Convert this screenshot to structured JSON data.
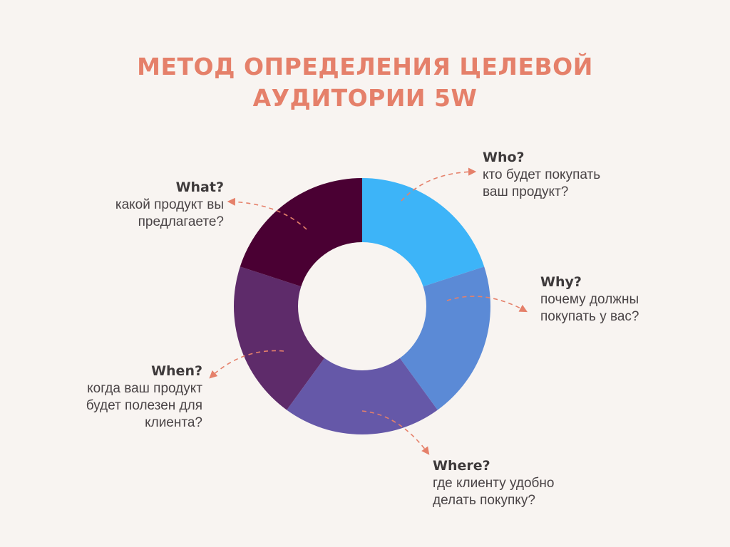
{
  "title": {
    "line1": "МЕТОД ОПРЕДЕЛЕНИЯ ЦЕЛЕВОЙ",
    "line2": "АУДИТОРИИ 5W"
  },
  "colors": {
    "title": "#e5806a",
    "arrow": "#e5806a",
    "background": "#f8f4f1"
  },
  "segments": [
    {
      "key": "who",
      "question": "Who?",
      "desc_lines": [
        "кто будет покупать",
        "ваш продукт?"
      ],
      "color": "#3db4f8"
    },
    {
      "key": "why",
      "question": "Why?",
      "desc_lines": [
        "почему должны",
        "покупать у вас?"
      ],
      "color": "#5b8ad6"
    },
    {
      "key": "where",
      "question": "Where?",
      "desc_lines": [
        "где клиенту удобно",
        "делать покупку?"
      ],
      "color": "#6558a8"
    },
    {
      "key": "when",
      "question": "When?",
      "desc_lines": [
        "когда ваш продукт",
        "будет полезен для",
        "клиента?"
      ],
      "color": "#5e2b6a"
    },
    {
      "key": "what",
      "question": "What?",
      "desc_lines": [
        "какой продукт вы",
        "предлагаете?"
      ],
      "color": "#4a0033"
    }
  ]
}
